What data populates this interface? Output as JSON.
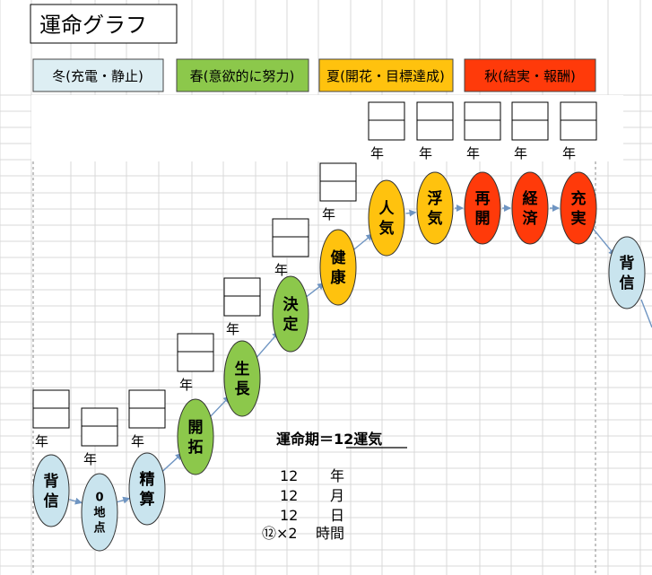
{
  "title": "運命グラフ",
  "legend": [
    {
      "label": "冬(充電・静止)",
      "color": "#ddeef3"
    },
    {
      "label": "春(意欲的に努力)",
      "color": "#8cc84b"
    },
    {
      "label": "夏(開花・目標達成)",
      "color": "#ffc20e"
    },
    {
      "label": "秋(結実・報酬)",
      "color": "#ff3a0a"
    }
  ],
  "year_label": "年",
  "steps": [
    {
      "label": "背\n信",
      "season": "winter"
    },
    {
      "label": "0\n地\n点",
      "season": "winter"
    },
    {
      "label": "精\n算",
      "season": "winter"
    },
    {
      "label": "開\n拓",
      "season": "spring"
    },
    {
      "label": "生\n長",
      "season": "spring"
    },
    {
      "label": "決\n定",
      "season": "spring"
    },
    {
      "label": "健\n康",
      "season": "summer"
    },
    {
      "label": "人\n気",
      "season": "summer"
    },
    {
      "label": "浮\n気",
      "season": "summer"
    },
    {
      "label": "再\n開",
      "season": "autumn"
    },
    {
      "label": "経\n済",
      "season": "autumn"
    },
    {
      "label": "充\n実",
      "season": "autumn"
    },
    {
      "label": "背\n信",
      "season": "winter"
    }
  ],
  "colors": {
    "winter": "#c9e4ee",
    "spring": "#8cc84b",
    "summer": "#ffc20e",
    "autumn": "#ff3a0a",
    "arrow": "#6f95c2",
    "grid": "#d9d9d9",
    "dashed": "#8a8a8a"
  },
  "info": {
    "heading": "運命期＝12運気",
    "rows": [
      {
        "num": "12",
        "unit": "年"
      },
      {
        "num": "12",
        "unit": "月"
      },
      {
        "num": "12",
        "unit": "日"
      },
      {
        "num": "⑫×2",
        "unit": "時間"
      }
    ]
  }
}
